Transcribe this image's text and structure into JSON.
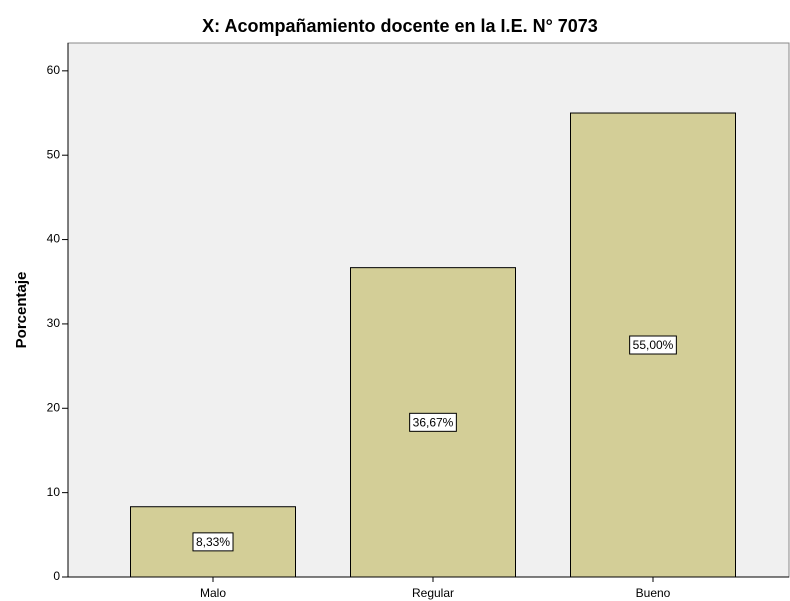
{
  "chart_data": {
    "type": "bar",
    "title": "X: Acompañamiento docente en la I.E. N° 7073",
    "y_label": "Porcentaje",
    "categories": [
      "Malo",
      "Regular",
      "Bueno"
    ],
    "values": [
      8.33,
      36.67,
      55.0
    ],
    "value_labels": [
      "8,33%",
      "36,67%",
      "55,00%"
    ],
    "color": "#d3ce97",
    "ylim": [
      0,
      63.3
    ],
    "yticks": [
      0,
      10,
      20,
      30,
      40,
      50,
      60
    ],
    "grid": false
  }
}
